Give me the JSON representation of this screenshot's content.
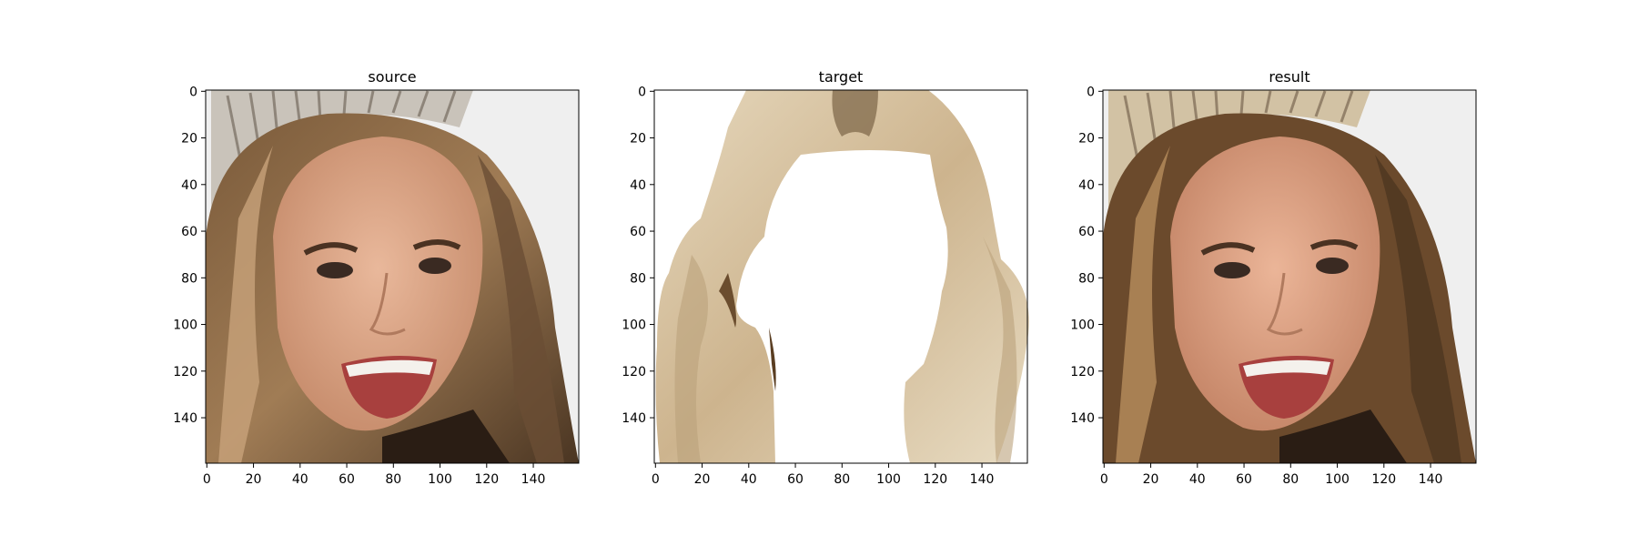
{
  "panels": [
    {
      "title": "source",
      "image_content": "woman-with-tiara-smiling-face-photo",
      "x_ticks": [
        "0",
        "20",
        "40",
        "60",
        "80",
        "100",
        "120",
        "140"
      ],
      "y_ticks": [
        "0",
        "20",
        "40",
        "60",
        "80",
        "100",
        "120",
        "140"
      ],
      "xlim": [
        0,
        160
      ],
      "ylim": [
        160,
        0
      ]
    },
    {
      "title": "target",
      "image_content": "blonde-hair-region-on-white-background",
      "x_ticks": [
        "0",
        "20",
        "40",
        "60",
        "80",
        "100",
        "120",
        "140"
      ],
      "y_ticks": [
        "0",
        "20",
        "40",
        "60",
        "80",
        "100",
        "120",
        "140"
      ],
      "xlim": [
        0,
        160
      ],
      "ylim": [
        160,
        0
      ]
    },
    {
      "title": "result",
      "image_content": "woman-with-tiara-smiling-face-photo-recolored",
      "x_ticks": [
        "0",
        "20",
        "40",
        "60",
        "80",
        "100",
        "120",
        "140"
      ],
      "y_ticks": [
        "0",
        "20",
        "40",
        "60",
        "80",
        "100",
        "120",
        "140"
      ],
      "xlim": [
        0,
        160
      ],
      "ylim": [
        160,
        0
      ]
    }
  ],
  "colors": {
    "hair_dark": "#5a4430",
    "hair_mid": "#8a6a48",
    "hair_blonde": "#d9c7a6",
    "skin": "#d9a488",
    "background_light": "#efefef"
  }
}
